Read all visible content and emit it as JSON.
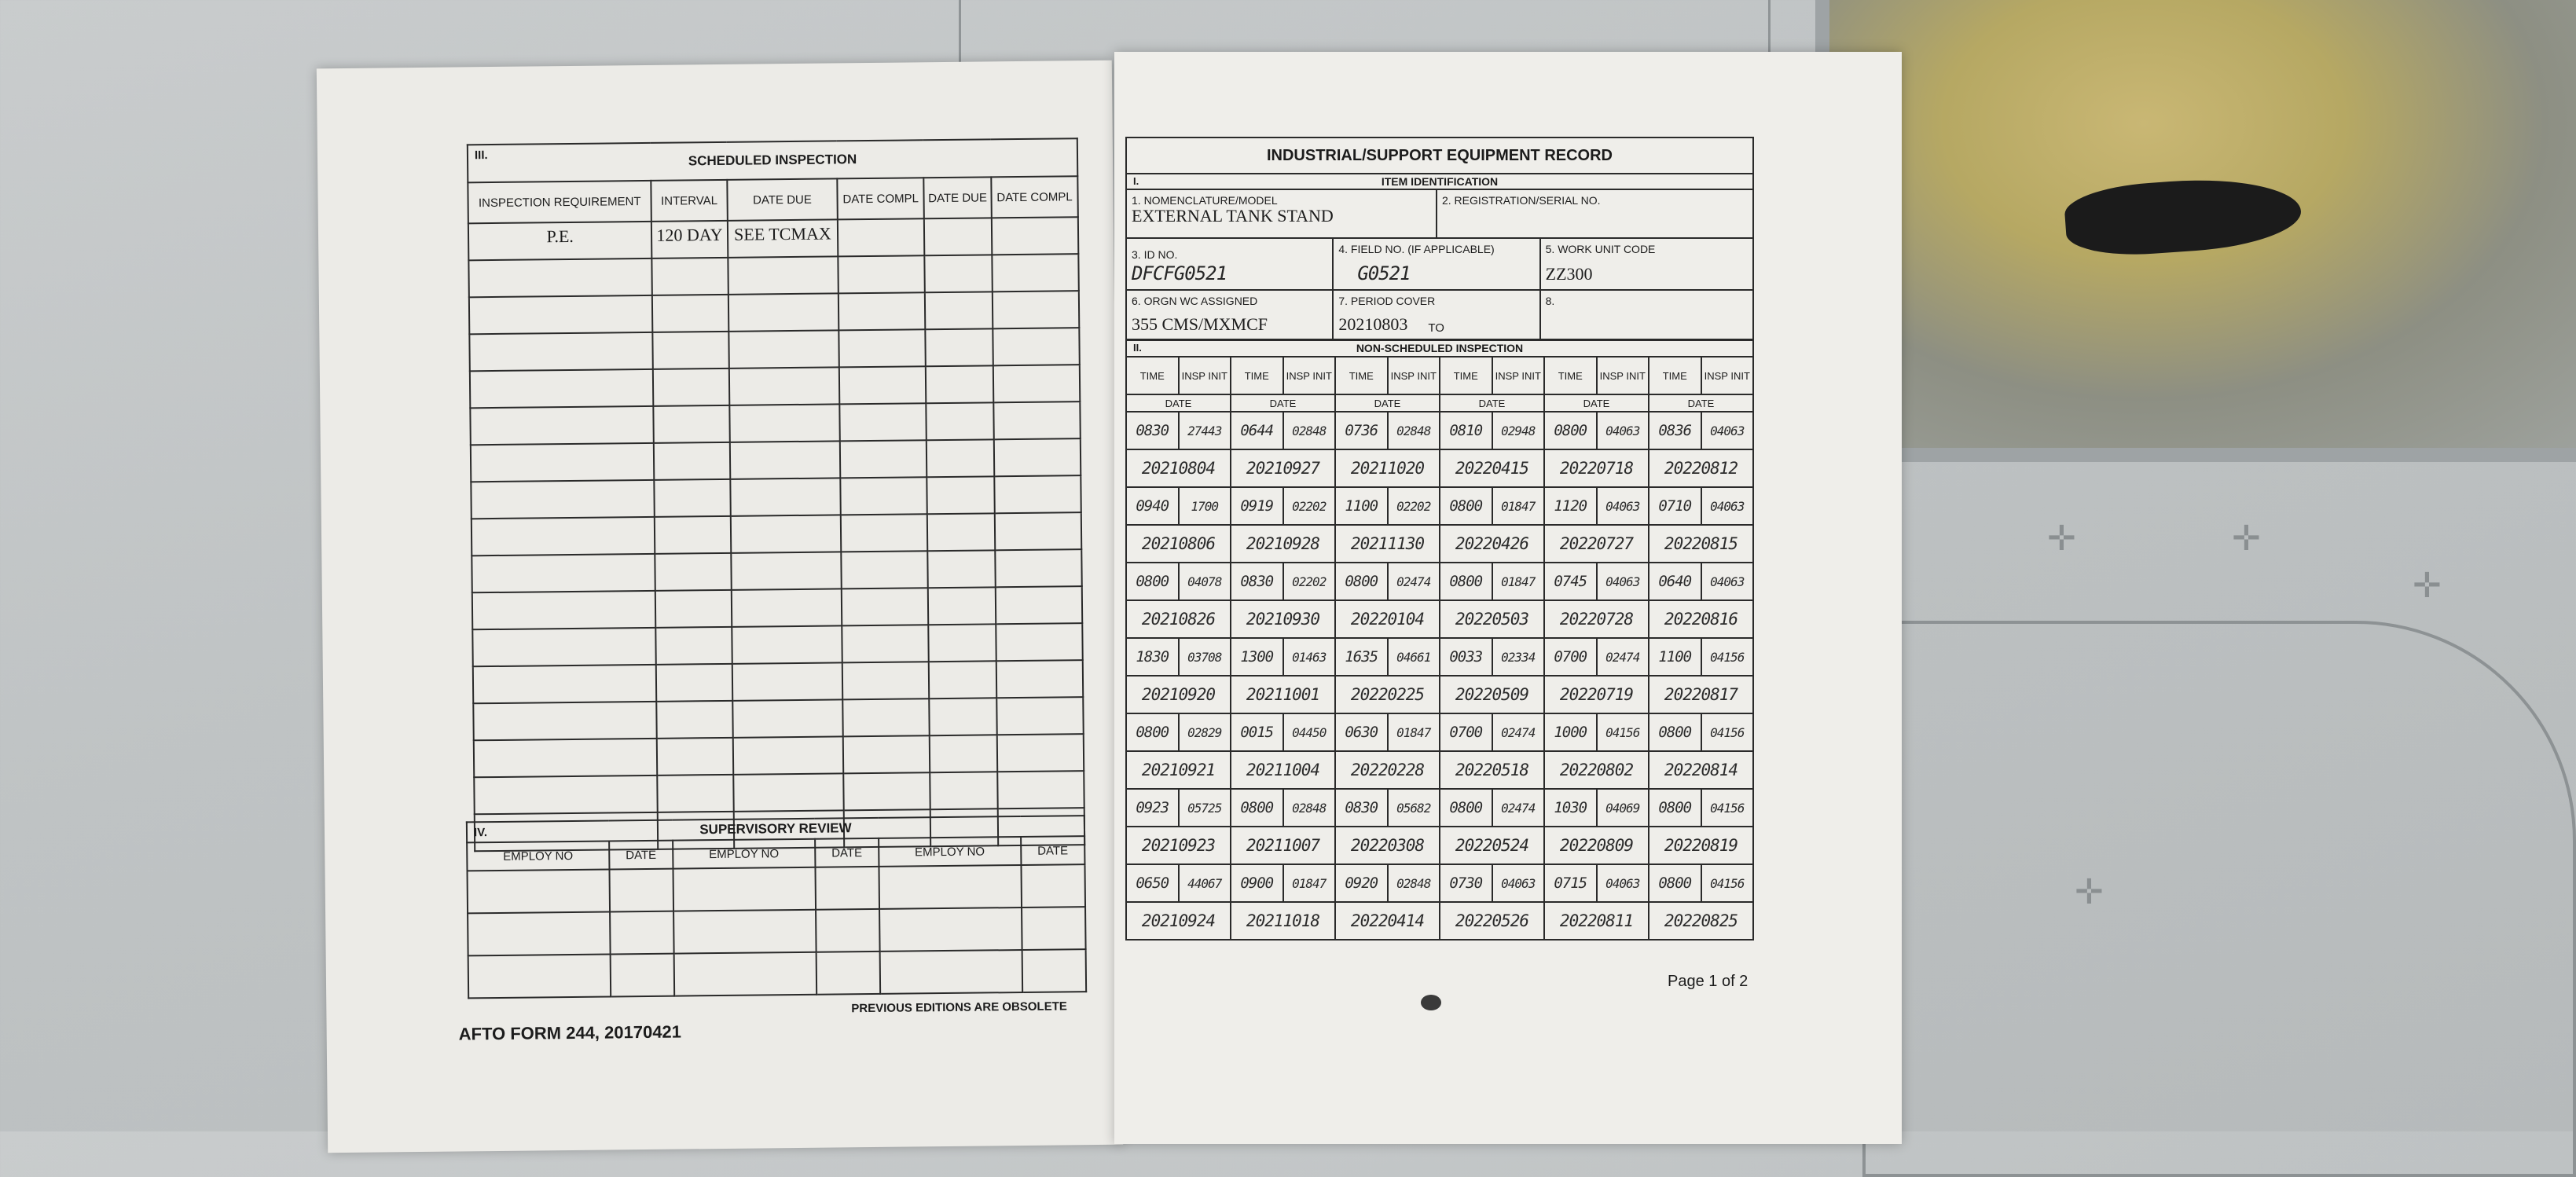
{
  "colors": {
    "paper": "#ecebe7",
    "background_metal": "#c2c6c7",
    "ink": "#1c1c1c"
  },
  "scheduled": {
    "section_num": "III.",
    "title": "SCHEDULED INSPECTION",
    "headers": [
      "INSPECTION REQUIREMENT",
      "INTERVAL",
      "DATE DUE",
      "DATE COMPL",
      "DATE DUE",
      "DATE COMPL"
    ],
    "rows": [
      [
        "P.E.",
        "120 DAY",
        "SEE TCMAX",
        "",
        "",
        ""
      ]
    ]
  },
  "supervisory": {
    "section_num": "IV.",
    "title": "SUPERVISORY REVIEW",
    "headers": [
      "EMPLOY NO",
      "DATE",
      "EMPLOY NO",
      "DATE",
      "EMPLOY NO",
      "DATE"
    ]
  },
  "footer": {
    "form_id": "AFTO FORM 244, 20170421",
    "obsolete_note": "PREVIOUS EDITIONS ARE OBSOLETE",
    "page": "Page 1 of 2"
  },
  "record": {
    "title": "INDUSTRIAL/SUPPORT EQUIPMENT RECORD",
    "section1_num": "I.",
    "section1_title": "ITEM IDENTIFICATION",
    "fields": {
      "nomenclature": {
        "label": "1. NOMENCLATURE/MODEL",
        "value": "EXTERNAL TANK STAND"
      },
      "serial": {
        "label": "2. REGISTRATION/SERIAL NO.",
        "value": ""
      },
      "id_no": {
        "label": "3. ID NO.",
        "value": "DFCFG0521"
      },
      "field_no": {
        "label": "4. FIELD NO. (If applicable)",
        "value": "G0521"
      },
      "wuc": {
        "label": "5. WORK UNIT CODE",
        "value": "ZZ300"
      },
      "orgn": {
        "label": "6. ORGN WC ASSIGNED",
        "value": "355 CMS/MXMCF"
      },
      "period": {
        "label": "7. PERIOD COVER",
        "value": "20210803",
        "to": "TO"
      },
      "eight": {
        "label": "8.",
        "value": ""
      }
    },
    "section2_num": "II.",
    "section2_title": "NON-SCHEDULED INSPECTION",
    "col_time": "TIME",
    "col_init": "INSP INIT",
    "col_date": "DATE",
    "groups": [
      {
        "times": [
          [
            "0830",
            "27443"
          ],
          [
            "0644",
            "02848"
          ],
          [
            "0736",
            "02848"
          ],
          [
            "0810",
            "02948"
          ],
          [
            "0800",
            "04063"
          ],
          [
            "0836",
            "04063"
          ]
        ],
        "dates": [
          "20210804",
          "20210927",
          "20211020",
          "20220415",
          "20220718",
          "20220812"
        ]
      },
      {
        "times": [
          [
            "0940",
            "1700"
          ],
          [
            "0919",
            "02202"
          ],
          [
            "1100",
            "02202"
          ],
          [
            "0800",
            "01847"
          ],
          [
            "1120",
            "04063"
          ],
          [
            "0710",
            "04063"
          ]
        ],
        "dates": [
          "20210806",
          "20210928",
          "20211130",
          "20220426",
          "20220727",
          "20220815"
        ]
      },
      {
        "times": [
          [
            "0800",
            "04078"
          ],
          [
            "0830",
            "02202"
          ],
          [
            "0800",
            "02474"
          ],
          [
            "0800",
            "01847"
          ],
          [
            "0745",
            "04063"
          ],
          [
            "0640",
            "04063"
          ]
        ],
        "dates": [
          "20210826",
          "20210930",
          "20220104",
          "20220503",
          "20220728",
          "20220816"
        ]
      },
      {
        "times": [
          [
            "1830",
            "03708"
          ],
          [
            "1300",
            "01463"
          ],
          [
            "1635",
            "04661"
          ],
          [
            "0033",
            "02334"
          ],
          [
            "0700",
            "02474"
          ],
          [
            "1100",
            "04156"
          ]
        ],
        "dates": [
          "20210920",
          "20211001",
          "20220225",
          "20220509",
          "20220719",
          "20220817"
        ]
      },
      {
        "times": [
          [
            "0800",
            "02829"
          ],
          [
            "0015",
            "04450"
          ],
          [
            "0630",
            "01847"
          ],
          [
            "0700",
            "02474"
          ],
          [
            "1000",
            "04156"
          ],
          [
            "0800",
            "04156"
          ]
        ],
        "dates": [
          "20210921",
          "20211004",
          "20220228",
          "20220518",
          "20220802",
          "20220814"
        ]
      },
      {
        "times": [
          [
            "0923",
            "05725"
          ],
          [
            "0800",
            "02848"
          ],
          [
            "0830",
            "05682"
          ],
          [
            "0800",
            "02474"
          ],
          [
            "1030",
            "04069"
          ],
          [
            "0800",
            "04156"
          ]
        ],
        "dates": [
          "20210923",
          "20211007",
          "20220308",
          "20220524",
          "20220809",
          "20220819"
        ]
      },
      {
        "times": [
          [
            "0650",
            "44067"
          ],
          [
            "0900",
            "01847"
          ],
          [
            "0920",
            "02848"
          ],
          [
            "0730",
            "04063"
          ],
          [
            "0715",
            "04063"
          ],
          [
            "0800",
            "04156"
          ]
        ],
        "dates": [
          "20210924",
          "20211018",
          "20220414",
          "20220526",
          "20220811",
          "20220825"
        ]
      }
    ]
  }
}
